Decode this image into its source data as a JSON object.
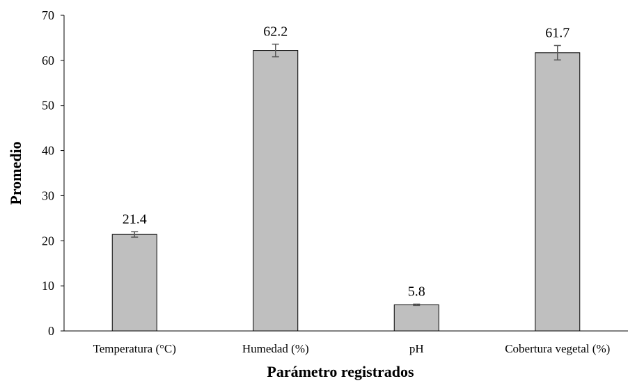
{
  "chart_data": {
    "type": "bar",
    "categories": [
      "Temperatura (°C)",
      "Humedad (%)",
      "pH",
      "Cobertura vegetal (%)"
    ],
    "values": [
      21.4,
      62.2,
      5.8,
      61.7
    ],
    "value_labels": [
      "21.4",
      "62.2",
      "5.8",
      "61.7"
    ],
    "error": [
      0.6,
      1.4,
      0.15,
      1.6
    ],
    "xlabel": "Parámetro registrados",
    "ylabel": "Promedio",
    "ylim": [
      0,
      70
    ],
    "yticks": [
      0,
      10,
      20,
      30,
      40,
      50,
      60,
      70
    ],
    "grid": false,
    "bar_color": "#bfbfbf",
    "bar_edge_color": "#000000",
    "error_bar_color": "#595959"
  }
}
